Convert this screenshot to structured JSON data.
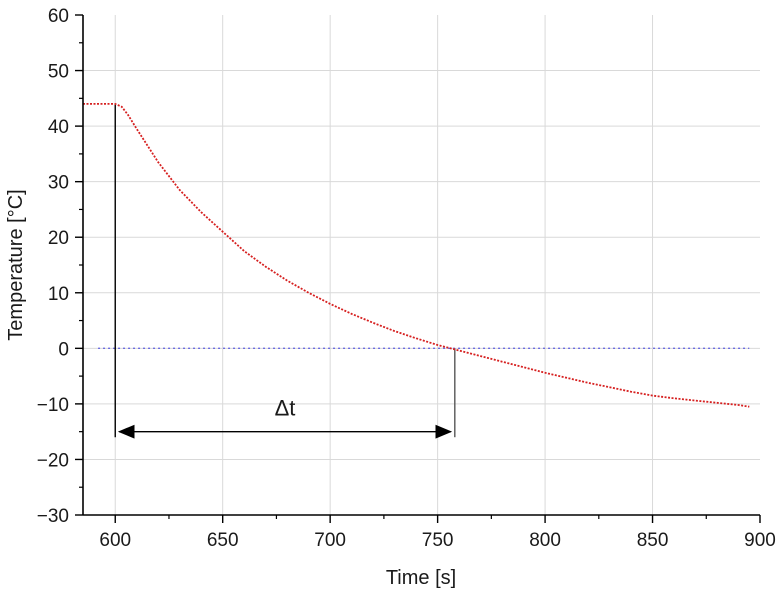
{
  "chart_data": {
    "type": "line",
    "title": "",
    "xlabel": "Time [s]",
    "ylabel": "Temperature [°C]",
    "xlim": [
      585,
      900
    ],
    "ylim": [
      -30,
      60
    ],
    "x_ticks": [
      600,
      650,
      700,
      750,
      800,
      850,
      900
    ],
    "y_ticks": [
      -30,
      -20,
      -10,
      0,
      10,
      20,
      30,
      40,
      50,
      60
    ],
    "x_tick_labels": [
      "600",
      "650",
      "700",
      "750",
      "800",
      "850",
      "900"
    ],
    "y_tick_labels": [
      "−30",
      "−20",
      "−10",
      "0",
      "10",
      "20",
      "30",
      "40",
      "50",
      "60"
    ],
    "grid": true,
    "series": [
      {
        "color": "#d62020",
        "style": "dotted",
        "x": [
          585,
          590,
          595,
          600,
          603,
          606,
          610,
          615,
          620,
          630,
          640,
          650,
          660,
          670,
          680,
          690,
          700,
          710,
          720,
          730,
          740,
          750,
          758,
          770,
          780,
          790,
          800,
          810,
          820,
          830,
          840,
          850,
          860,
          870,
          880,
          890,
          895
        ],
        "y": [
          44,
          44,
          44,
          44,
          43.5,
          42,
          39.5,
          36.5,
          33.5,
          28.5,
          24.5,
          21,
          17.5,
          14.7,
          12.2,
          10,
          8,
          6.2,
          4.6,
          3.1,
          1.8,
          0.6,
          -0.2,
          -1.4,
          -2.4,
          -3.4,
          -4.4,
          -5.3,
          -6.2,
          -7,
          -7.8,
          -8.5,
          -9,
          -9.4,
          -9.8,
          -10.2,
          -10.5
        ]
      }
    ],
    "reference_lines": [
      {
        "orientation": "horizontal",
        "y": 0,
        "color": "#6a6ae0",
        "style": "dotted"
      }
    ],
    "annotations": [
      {
        "type": "vertical-marker",
        "x": 600,
        "y_from": -16,
        "y_to": 44,
        "color": "#000000"
      },
      {
        "type": "vertical-marker",
        "x": 758,
        "y_from": -16,
        "y_to": 0,
        "color": "#555555"
      },
      {
        "type": "double-arrow",
        "x_from": 600,
        "x_to": 758,
        "y": -15,
        "label": "Δt"
      }
    ]
  }
}
